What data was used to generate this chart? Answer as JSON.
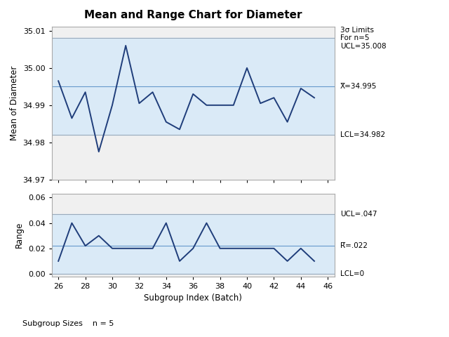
{
  "title": "Mean and Range Chart for Diameter",
  "xlabel": "Subgroup Index (Batch)",
  "ylabel_top": "Mean of Diameter",
  "ylabel_bottom": "Range",
  "footer": "Subgroup Sizes    n = 5",
  "x": [
    26,
    27,
    28,
    29,
    30,
    31,
    32,
    33,
    34,
    35,
    36,
    37,
    38,
    39,
    40,
    41,
    42,
    43,
    44,
    45
  ],
  "mean_values": [
    34.9965,
    34.9865,
    34.9935,
    34.9775,
    34.99,
    35.006,
    34.9905,
    34.9935,
    34.9855,
    34.9835,
    34.993,
    34.99,
    34.99,
    34.99,
    35.0,
    34.9905,
    34.992,
    34.9855,
    34.9945,
    34.992
  ],
  "range_values": [
    0.01,
    0.04,
    0.022,
    0.03,
    0.02,
    0.02,
    0.02,
    0.02,
    0.04,
    0.01,
    0.02,
    0.04,
    0.02,
    0.02,
    0.02,
    0.02,
    0.02,
    0.01,
    0.02,
    0.01
  ],
  "mean_ucl": 35.008,
  "mean_cl": 34.995,
  "mean_lcl": 34.982,
  "range_ucl": 0.047,
  "range_cl": 0.022,
  "range_lcl": 0,
  "mean_ylim": [
    34.97,
    35.011
  ],
  "range_ylim": [
    -0.002,
    0.063
  ],
  "mean_yticks": [
    34.97,
    34.98,
    34.99,
    35.0,
    35.01
  ],
  "range_yticks": [
    0.0,
    0.02,
    0.04,
    0.06
  ],
  "control_band_color": "#daeaf7",
  "line_color": "#1f3d7a",
  "cl_color": "#6699cc",
  "limit_line_color": "#99aabb",
  "bg_color": "#ffffff",
  "plot_bg_color": "#ffffff",
  "outer_bg_color": "#f0f0f0",
  "xlim": [
    25.5,
    46.5
  ],
  "xticks": [
    26,
    28,
    30,
    32,
    34,
    36,
    38,
    40,
    42,
    44,
    46
  ],
  "mean_ucl_label": "3σ Limits\nFor n=5\nUCL=35.008",
  "mean_cl_label": "X̅=34.995",
  "mean_lcl_label": "LCL=34.982",
  "range_ucl_label": "UCL=.047",
  "range_cl_label": "R̅=.022",
  "range_lcl_label": "LCL=0"
}
